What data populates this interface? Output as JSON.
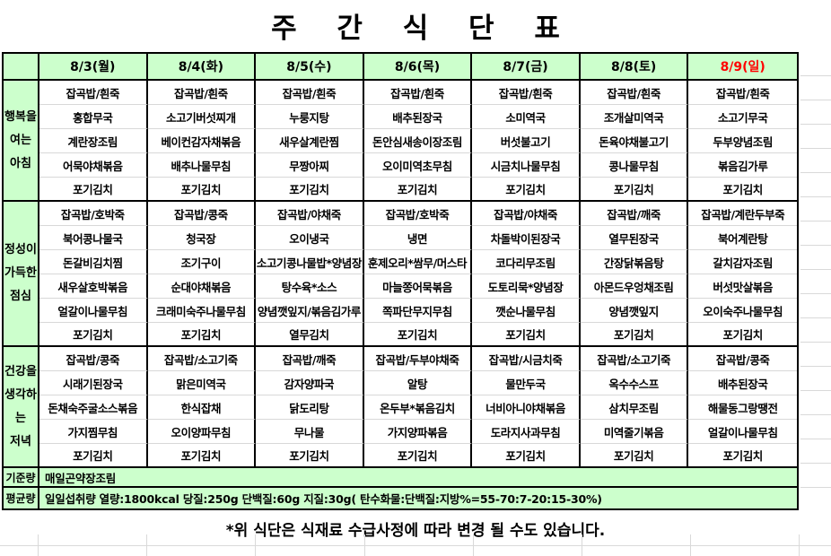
{
  "title": "주 간 식 단 표",
  "footer_note": "*위 식단은 식재료 수급사정에 따라 변경 될 수도 있습니다.",
  "colors": {
    "header_bg": "#ccffcc",
    "sunday_red": "#ff0000",
    "border_black": "#000000",
    "grid_light": "#d9d9d9"
  },
  "days": [
    {
      "label": "8/3(월)",
      "color": "black"
    },
    {
      "label": "8/4(화)",
      "color": "black"
    },
    {
      "label": "8/5(수)",
      "color": "black"
    },
    {
      "label": "8/6(목)",
      "color": "black"
    },
    {
      "label": "8/7(금)",
      "color": "black"
    },
    {
      "label": "8/8(토)",
      "color": "black"
    },
    {
      "label": "8/9(일)",
      "color": "red"
    }
  ],
  "meals": [
    {
      "name": "행복을 여는 아침",
      "name_lines": [
        "행복을",
        "여는",
        "아침"
      ],
      "menus": [
        [
          "잡곡밥/흰죽",
          "홍합무국",
          "계란장조림",
          "어묵야채볶음",
          "포기김치"
        ],
        [
          "잡곡밥/흰죽",
          "소고기버섯찌개",
          "베이컨감자채볶음",
          "배추나물무침",
          "포기김치"
        ],
        [
          "잡곡밥/흰죽",
          "누룽지탕",
          "새우살계란찜",
          "무짱아찌",
          "포기김치"
        ],
        [
          "잡곡밥/흰죽",
          "배추된장국",
          "돈안심새송이장조림",
          "오이미역초무침",
          "포기김치"
        ],
        [
          "잡곡밥/흰죽",
          "소미역국",
          "버섯불고기",
          "시금치나물무침",
          "포기김치"
        ],
        [
          "잡곡밥/흰죽",
          "조개살미역국",
          "돈육야채불고기",
          "콩나물무침",
          "포기김치"
        ],
        [
          "잡곡밥/흰죽",
          "소고기무국",
          "두부양념조림",
          "볶음김가루",
          "포기김치"
        ]
      ]
    },
    {
      "name": "정성이 가득한 점심",
      "name_lines": [
        "정성이",
        "가득한",
        "점심"
      ],
      "menus": [
        [
          "잡곡밥/호박죽",
          "북어콩나물국",
          "돈갈비김치찜",
          "새우살호박볶음",
          "얼갈이나물무침",
          "포기김치"
        ],
        [
          "잡곡밥/콩죽",
          "청국장",
          "조기구이",
          "순대야채볶음",
          "크래미숙주나물무침",
          "포기김치"
        ],
        [
          "잡곡밥/야채죽",
          "오이냉국",
          "소고기콩나물밥*양념장",
          "탕수육*소스",
          "양념깻잎지/볶음김가루",
          "열무김치"
        ],
        [
          "잡곡밥/호박죽",
          "냉면",
          "훈제오리*쌈무/머스타",
          "마늘쫑어묵볶음",
          "쪽파단무지무침",
          "포기김치"
        ],
        [
          "잡곡밥/야채죽",
          "차돌박이된장국",
          "코다리무조림",
          "도토리묵*양념장",
          "깻순나물무침",
          "포기김치"
        ],
        [
          "잡곡밥/깨죽",
          "열무된장국",
          "간장닭볶음탕",
          "아몬드우엉채조림",
          "양념깻잎지",
          "포기김치"
        ],
        [
          "잡곡밥/계란두부죽",
          "북어계란탕",
          "갈치감자조림",
          "버섯맛살볶음",
          "오이숙주나물무침",
          "포기김치"
        ]
      ]
    },
    {
      "name": "건강을 생각하는 저녁",
      "name_lines": [
        "건강을",
        "생각하는",
        "저녁"
      ],
      "menus": [
        [
          "잡곡밥/콩죽",
          "시래기된장국",
          "돈채숙주굴소스볶음",
          "가지찜무침",
          "포기김치"
        ],
        [
          "잡곡밥/소고기죽",
          "맑은미역국",
          "한식잡채",
          "오이양파무침",
          "포기김치"
        ],
        [
          "잡곡밥/깨죽",
          "감자양파국",
          "닭도리탕",
          "무나물",
          "포기김치"
        ],
        [
          "잡곡밥/두부야채죽",
          "알탕",
          "온두부*볶음김치",
          "가지양파볶음",
          "포기김치"
        ],
        [
          "잡곡밥/시금치죽",
          "물만두국",
          "너비아니야채볶음",
          "도라지사과무침",
          "포기김치"
        ],
        [
          "잡곡밥/소고기죽",
          "옥수수스프",
          "삼치무조림",
          "미역줄기볶음",
          "포기김치"
        ],
        [
          "잡곡밥/콩죽",
          "배추된장국",
          "해물동그랑땡전",
          "얼갈이나물무침",
          "포기김치"
        ]
      ]
    }
  ],
  "summary_rows": [
    {
      "label": "기준량",
      "value": "매일곤약장조림"
    },
    {
      "label": "평균량",
      "value": "일일섭취량 열량:1800kcal 당질:250g 단백질:60g 지질:30g( 탄수화물:단백질:지방%=55-70:7-20:15-30%)"
    }
  ]
}
